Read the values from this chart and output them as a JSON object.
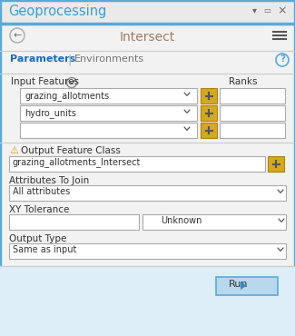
{
  "title": "Geoprocessing",
  "subtitle": "Intersect",
  "tab_active": "Parameters",
  "tab_inactive": "Environments",
  "section_input": "Input Features",
  "section_output": "Output Feature Class",
  "section_attr": "Attributes To Join",
  "section_xy": "XY Tolerance",
  "section_outtype": "Output Type",
  "ranks_label": "Ranks",
  "input_rows": [
    "grazing_allotments",
    "hydro_units",
    ""
  ],
  "output_value": "grazing_allotments_Intersect",
  "attr_value": "All attributes",
  "xy_unit": "Unknown",
  "outtype_value": "Same as input",
  "run_label": "Run",
  "panel_bg": "#f2f2f2",
  "header_bg": "#eaeaea",
  "title_color": "#3aa0d5",
  "subtitle_color": "#a08060",
  "tab_active_color": "#1a6bbf",
  "input_bg": "#ffffff",
  "button_yellow": "#d4a820",
  "run_bg": "#b8d8ee",
  "run_border": "#5aaad8",
  "footer_bg": "#ddeef8",
  "warning_color": "#e89010",
  "border_outer": "#5aaad8",
  "separator_color": "#cccccc",
  "field_border": "#aaaaaa",
  "label_color": "#333333",
  "ctrl_color": "#666666"
}
